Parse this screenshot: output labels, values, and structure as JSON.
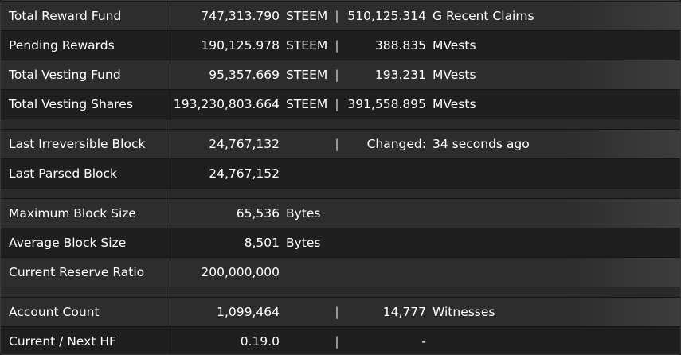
{
  "sections": {
    "funds": [
      {
        "label": "Total Reward Fund",
        "value": "747,313.790",
        "unit": "STEEM",
        "sep": "|",
        "value2": "510,125.314",
        "unit2": "G  Recent Claims"
      },
      {
        "label": "Pending Rewards",
        "value": "190,125.978",
        "unit": "STEEM",
        "sep": "|",
        "value2": "388.835",
        "unit2": "MVests"
      },
      {
        "label": "Total Vesting Fund",
        "value": "95,357.669",
        "unit": "STEEM",
        "sep": "|",
        "value2": "193.231",
        "unit2": "MVests"
      },
      {
        "label": "Total Vesting Shares",
        "value": "193,230,803.664",
        "unit": "STEEM",
        "sep": "|",
        "value2": "391,558.895",
        "unit2": "MVests"
      }
    ],
    "blocks": [
      {
        "label": "Last Irreversible Block",
        "value": "24,767,132",
        "unit": "",
        "sep": "|",
        "value2": "Changed:",
        "unit2": "34 seconds ago"
      },
      {
        "label": "Last Parsed Block",
        "value": "24,767,152",
        "unit": "",
        "sep": "",
        "value2": "",
        "unit2": ""
      }
    ],
    "limits": [
      {
        "label": "Maximum Block Size",
        "value": "65,536",
        "unit": "Bytes",
        "sep": "",
        "value2": "",
        "unit2": ""
      },
      {
        "label": "Average Block Size",
        "value": "8,501",
        "unit": "Bytes",
        "sep": "",
        "value2": "",
        "unit2": ""
      },
      {
        "label": "Current Reserve Ratio",
        "value": "200,000,000",
        "unit": "",
        "sep": "",
        "value2": "",
        "unit2": ""
      }
    ],
    "accounts": [
      {
        "label": "Account Count",
        "value": "1,099,464",
        "unit": "",
        "sep": "|",
        "value2": "14,777",
        "unit2": "Witnesses"
      },
      {
        "label": "Current / Next HF",
        "value": "0.19.0",
        "unit": "",
        "sep": "|",
        "value2": "-",
        "unit2": ""
      }
    ]
  },
  "colors": {
    "row_odd": "#2d2d2d",
    "row_even": "#1f1f1f",
    "text": "#ffffff"
  }
}
